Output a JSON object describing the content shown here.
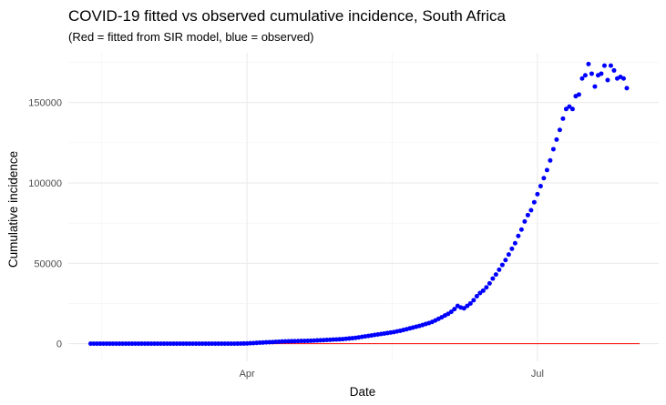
{
  "chart_data": {
    "type": "scatter",
    "title": "COVID-19 fitted vs observed cumulative incidence, South Africa",
    "subtitle": "(Red = fitted from SIR model, blue = observed)",
    "xlabel": "Date",
    "ylabel": "Cumulative incidence",
    "x_range": [
      "2020-02-05",
      "2020-08-08"
    ],
    "ylim": [
      -11000,
      181000
    ],
    "x_ticks": [
      {
        "date": "2020-04-01",
        "label": "Apr"
      },
      {
        "date": "2020-07-01",
        "label": "Jul"
      }
    ],
    "y_ticks": [
      {
        "value": 0,
        "label": "0"
      },
      {
        "value": 50000,
        "label": "50000"
      },
      {
        "value": 100000,
        "label": "100000"
      },
      {
        "value": 150000,
        "label": "150000"
      }
    ],
    "grid": true,
    "legend": "none",
    "colors": {
      "observed": "#0000ff",
      "fitted": "#ff0000"
    },
    "observed": {
      "start_date": "2020-02-12",
      "values": [
        0,
        0,
        0,
        0,
        0,
        0,
        0,
        0,
        0,
        0,
        0,
        0,
        0,
        0,
        0,
        0,
        0,
        0,
        0,
        0,
        0,
        0,
        0,
        0,
        0,
        0,
        0,
        0,
        0,
        0,
        0,
        0,
        0,
        0,
        0,
        0,
        0,
        0,
        0,
        0,
        0,
        0,
        0,
        0,
        0,
        0,
        10,
        30,
        80,
        150,
        250,
        350,
        500,
        600,
        700,
        850,
        900,
        1000,
        1100,
        1200,
        1300,
        1400,
        1450,
        1500,
        1550,
        1600,
        1650,
        1700,
        1750,
        1800,
        1900,
        2000,
        2100,
        2200,
        2300,
        2400,
        2500,
        2600,
        2700,
        2800,
        3000,
        3200,
        3400,
        3600,
        3900,
        4200,
        4500,
        4800,
        5100,
        5400,
        5700,
        6000,
        6300,
        6600,
        6900,
        7200,
        7600,
        8000,
        8500,
        9000,
        9500,
        10000,
        10500,
        11000,
        11600,
        12200,
        12800,
        13500,
        14400,
        15400,
        16400,
        17500,
        18500,
        19800,
        21500,
        23500,
        22500,
        22000,
        23500,
        25000,
        27000,
        29500,
        31500,
        33000,
        35000,
        37500,
        40500,
        43000,
        46000,
        49000,
        52000,
        55500,
        59000,
        62500,
        67000,
        71000,
        76000,
        80000,
        83000,
        88000,
        93000,
        98000,
        103000,
        108000,
        114000,
        121000,
        127000,
        133000,
        140000,
        146000,
        147500,
        146000,
        154000,
        155000,
        165000,
        167000,
        174000,
        168000,
        160000,
        167000,
        168000,
        173000,
        164000,
        173000,
        170000,
        165000,
        166000,
        165000,
        159000
      ]
    },
    "fitted": {
      "start_date": "2020-02-12",
      "end_date": "2020-08-02",
      "values": [
        0,
        0
      ]
    }
  }
}
